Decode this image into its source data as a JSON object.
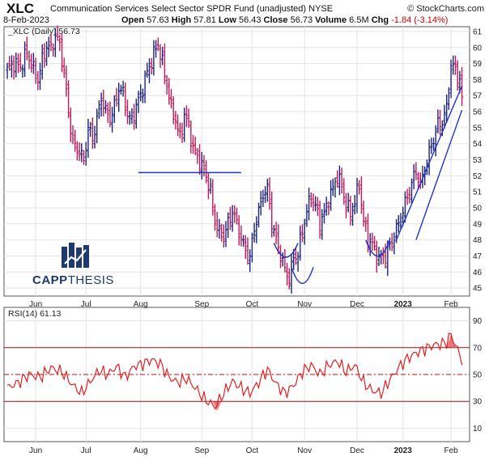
{
  "header": {
    "symbol": "XLC",
    "description": "Communication Services Select Sector SPDR Fund (unadjusted)  NYSE",
    "credit": "© StockCharts.com",
    "date": "8-Feb-2023",
    "open_label": "Open",
    "open": "57.63",
    "high_label": "High",
    "high": "57.81",
    "low_label": "Low",
    "low": "56.43",
    "close_label": "Close",
    "close": "56.73",
    "volume_label": "Volume",
    "volume": "6.5M",
    "chg_label": "Chg",
    "chg": "-1.84 (-3.14%)"
  },
  "logo": {
    "text_bold": "CAPP",
    "text_regular": "THESIS"
  },
  "colors": {
    "up": "#1a237e",
    "down": "#c2185b",
    "pattern": "#1f35c8",
    "rsi": "#e02020",
    "grid": "#e4e4e4",
    "frame": "#555555"
  },
  "chart_data": [
    {
      "type": "line",
      "subtype": "ohlc-bar",
      "legend": "_XLC (Daily) 56.73",
      "x_tick_labels": [
        "Jun",
        "Jul",
        "Aug",
        "Sep",
        "Oct",
        "Nov",
        "Dec",
        "2023",
        "Feb"
      ],
      "y_ticks": [
        45,
        46,
        47,
        48,
        49,
        50,
        51,
        52,
        53,
        54,
        55,
        56,
        57,
        58,
        59,
        60,
        61
      ],
      "ylim": [
        44.5,
        61.3
      ],
      "anchors": [
        [
          0,
          58.6
        ],
        [
          3,
          59.0
        ],
        [
          6,
          58.8
        ],
        [
          9,
          59.7
        ],
        [
          12,
          58.6
        ],
        [
          14,
          58.0
        ],
        [
          16,
          59.2
        ],
        [
          18,
          60.1
        ],
        [
          20,
          59.9
        ],
        [
          22,
          60.7
        ],
        [
          24,
          60.2
        ],
        [
          26,
          58.4
        ],
        [
          28,
          56.0
        ],
        [
          30,
          54.0
        ],
        [
          33,
          53.5
        ],
        [
          35,
          52.9
        ],
        [
          37,
          55.0
        ],
        [
          39,
          54.3
        ],
        [
          41,
          55.5
        ],
        [
          43,
          56.9
        ],
        [
          45,
          56.0
        ],
        [
          47,
          55.6
        ],
        [
          49,
          56.3
        ],
        [
          51,
          57.5
        ],
        [
          53,
          57.1
        ],
        [
          55,
          55.8
        ],
        [
          57,
          55.4
        ],
        [
          59,
          56.4
        ],
        [
          61,
          57.0
        ],
        [
          63,
          58.0
        ],
        [
          65,
          58.8
        ],
        [
          67,
          59.6
        ],
        [
          69,
          60.2
        ],
        [
          71,
          59.0
        ],
        [
          73,
          57.7
        ],
        [
          75,
          56.2
        ],
        [
          77,
          55.5
        ],
        [
          79,
          54.3
        ],
        [
          81,
          55.8
        ],
        [
          83,
          55.1
        ],
        [
          85,
          53.7
        ],
        [
          87,
          53.2
        ],
        [
          89,
          52.6
        ],
        [
          91,
          52.0
        ],
        [
          93,
          50.9
        ],
        [
          95,
          49.2
        ],
        [
          97,
          48.4
        ],
        [
          99,
          48.3
        ],
        [
          101,
          49.0
        ],
        [
          103,
          49.8
        ],
        [
          105,
          49.0
        ],
        [
          107,
          48.1
        ],
        [
          109,
          47.3
        ],
        [
          111,
          46.9
        ],
        [
          113,
          48.7
        ],
        [
          115,
          49.8
        ],
        [
          117,
          50.9
        ],
        [
          119,
          51.2
        ],
        [
          121,
          49.1
        ],
        [
          123,
          48.0
        ],
        [
          125,
          47.1
        ],
        [
          127,
          46.1
        ],
        [
          129,
          45.6
        ],
        [
          131,
          46.9
        ],
        [
          133,
          47.1
        ],
        [
          135,
          48.6
        ],
        [
          137,
          49.8
        ],
        [
          139,
          50.7
        ],
        [
          141,
          50.1
        ],
        [
          143,
          49.1
        ],
        [
          145,
          49.6
        ],
        [
          147,
          50.6
        ],
        [
          149,
          51.2
        ],
        [
          151,
          52.0
        ],
        [
          153,
          51.3
        ],
        [
          155,
          50.2
        ],
        [
          157,
          49.6
        ],
        [
          159,
          50.4
        ],
        [
          161,
          51.5
        ],
        [
          163,
          49.1
        ],
        [
          165,
          48.1
        ],
        [
          167,
          47.7
        ],
        [
          169,
          47.0
        ],
        [
          171,
          46.9
        ],
        [
          173,
          47.0
        ],
        [
          175,
          47.6
        ],
        [
          177,
          48.3
        ],
        [
          179,
          49.0
        ],
        [
          181,
          49.8
        ],
        [
          183,
          50.7
        ],
        [
          185,
          51.5
        ],
        [
          187,
          52.3
        ],
        [
          189,
          51.4
        ],
        [
          191,
          52.4
        ],
        [
          193,
          53.4
        ],
        [
          195,
          54.3
        ],
        [
          197,
          55.2
        ],
        [
          199,
          55.4
        ],
        [
          201,
          56.2
        ],
        [
          203,
          58.9
        ],
        [
          205,
          58.6
        ],
        [
          207,
          57.9
        ],
        [
          208,
          56.7
        ]
      ],
      "pattern_lines": {
        "neckline": {
          "x": [
            60,
            107
          ],
          "y": 52.2
        },
        "channel_upper": {
          "x": [
            178,
            208
          ],
          "y": [
            48.0,
            57.6
          ]
        },
        "channel_lower": {
          "x": [
            187,
            208
          ],
          "y": [
            48.0,
            56.1
          ]
        }
      },
      "pattern_arcs": [
        {
          "x": [
            122,
            133
          ],
          "y_top": 47.8,
          "y_bottom": 46.5
        },
        {
          "x": [
            130,
            140
          ],
          "y_top": 46.3,
          "y_bottom": 44.8
        },
        {
          "x": [
            164,
            175
          ],
          "y_top": 48.0,
          "y_bottom": 46.5
        }
      ]
    },
    {
      "type": "line",
      "legend": "RSI(14) 61.13",
      "y_ticks": [
        10,
        30,
        50,
        70,
        90
      ],
      "ylim": [
        0,
        100
      ],
      "reference_lines": [
        70,
        50,
        30
      ],
      "anchors": [
        [
          0,
          40
        ],
        [
          5,
          44
        ],
        [
          10,
          50
        ],
        [
          15,
          48
        ],
        [
          20,
          55
        ],
        [
          25,
          52
        ],
        [
          30,
          42
        ],
        [
          34,
          36
        ],
        [
          38,
          45
        ],
        [
          42,
          53
        ],
        [
          46,
          50
        ],
        [
          50,
          56
        ],
        [
          54,
          48
        ],
        [
          58,
          56
        ],
        [
          62,
          58
        ],
        [
          66,
          61
        ],
        [
          70,
          58
        ],
        [
          74,
          48
        ],
        [
          78,
          44
        ],
        [
          82,
          47
        ],
        [
          86,
          40
        ],
        [
          90,
          32
        ],
        [
          95,
          26
        ],
        [
          99,
          36
        ],
        [
          103,
          45
        ],
        [
          107,
          40
        ],
        [
          111,
          36
        ],
        [
          115,
          44
        ],
        [
          119,
          54
        ],
        [
          123,
          43
        ],
        [
          127,
          36
        ],
        [
          131,
          42
        ],
        [
          135,
          52
        ],
        [
          139,
          57
        ],
        [
          143,
          50
        ],
        [
          147,
          57
        ],
        [
          151,
          60
        ],
        [
          155,
          52
        ],
        [
          159,
          57
        ],
        [
          163,
          44
        ],
        [
          167,
          38
        ],
        [
          171,
          36
        ],
        [
          175,
          46
        ],
        [
          179,
          55
        ],
        [
          183,
          62
        ],
        [
          187,
          66
        ],
        [
          191,
          69
        ],
        [
          195,
          72
        ],
        [
          199,
          73
        ],
        [
          201,
          74
        ],
        [
          203,
          80
        ],
        [
          205,
          72
        ],
        [
          208,
          61
        ]
      ]
    }
  ]
}
